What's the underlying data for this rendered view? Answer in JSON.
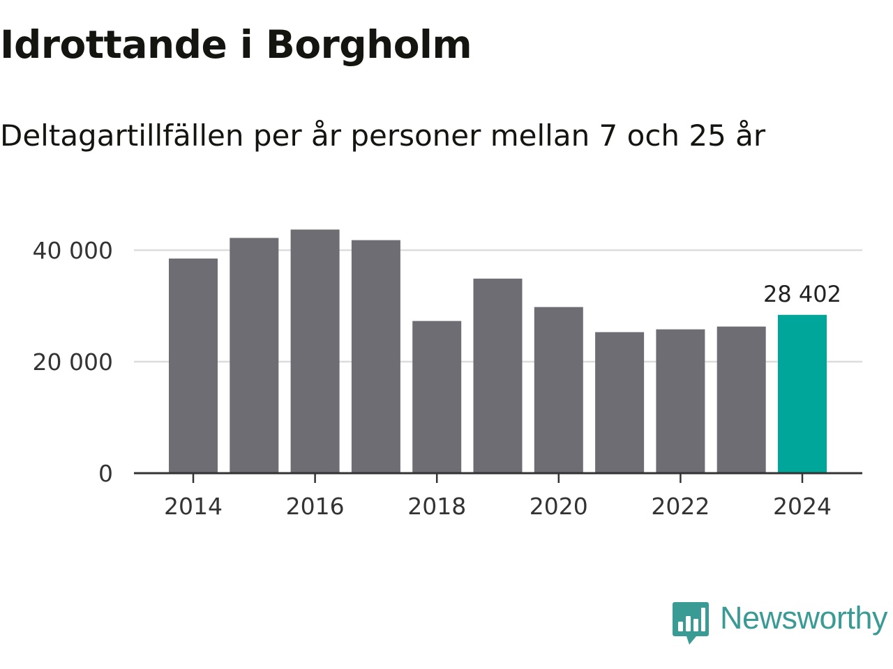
{
  "title": "Idrottande i Borgholm",
  "subtitle": "Deltagartillfällen per år personer mellan 7 och 25 år",
  "brand": "Newsworthy",
  "colors": {
    "bar": "#6e6d73",
    "highlight": "#00a69a",
    "grid": "#dcdcdc",
    "axis": "#333333",
    "brand": "#3a9a94"
  },
  "chart_data": {
    "type": "bar",
    "title": "Idrottande i Borgholm",
    "subtitle": "Deltagartillfällen per år personer mellan 7 och 25 år",
    "xlabel": "",
    "ylabel": "",
    "categories": [
      "2014",
      "2015",
      "2016",
      "2017",
      "2018",
      "2019",
      "2020",
      "2021",
      "2022",
      "2023",
      "2024"
    ],
    "values": [
      38500,
      42200,
      43700,
      41800,
      27300,
      34900,
      29800,
      25300,
      25800,
      26300,
      28402
    ],
    "highlight_index": 10,
    "highlight_label": "28 402",
    "ylim": [
      0,
      45000
    ],
    "yticks": [
      0,
      20000,
      40000
    ],
    "ytick_labels": [
      "0",
      "20 000",
      "40 000"
    ],
    "xtick_labels": [
      "2014",
      "2016",
      "2018",
      "2020",
      "2022",
      "2024"
    ],
    "grid": true
  }
}
